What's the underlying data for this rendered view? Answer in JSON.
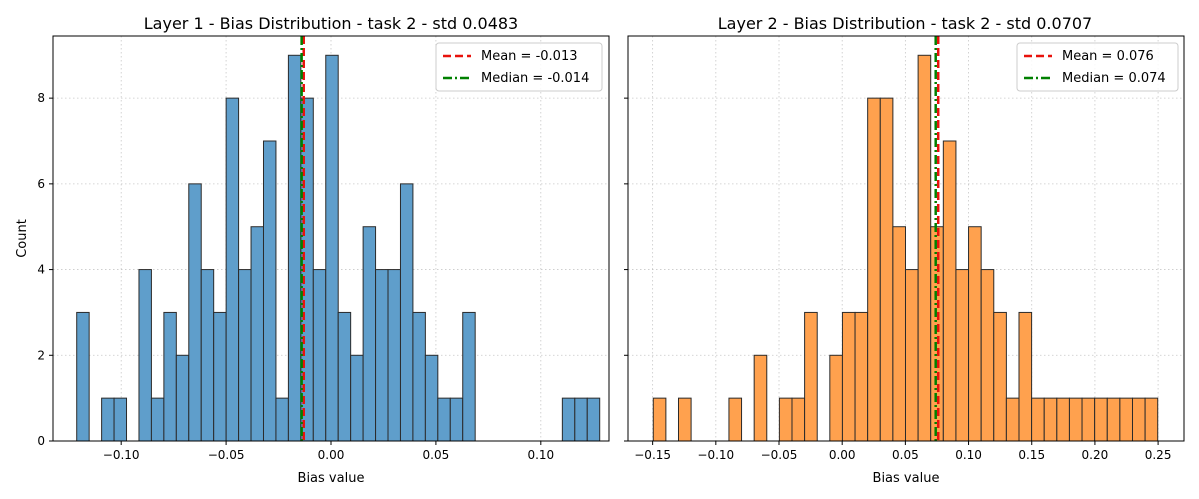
{
  "chart_data": [
    {
      "type": "bar",
      "title": "Layer 1 - Bias Distribution - task 2 - std 0.0483",
      "xlabel": "Bias value",
      "ylabel": "Count",
      "xlim": [
        -0.1325,
        0.1325
      ],
      "ylim": [
        0,
        9.45
      ],
      "xticks": [
        -0.1,
        -0.05,
        0.0,
        0.05,
        0.1
      ],
      "xtick_labels": [
        "−0.10",
        "−0.05",
        "0.00",
        "0.05",
        "0.10"
      ],
      "yticks": [
        0,
        2,
        4,
        6,
        8
      ],
      "grid": true,
      "legend_position": "top-right",
      "bar_color": "#5f9ecb",
      "bins": {
        "start": -0.1212,
        "width": 0.005935,
        "counts": [
          3,
          0,
          1,
          1,
          0,
          4,
          1,
          3,
          2,
          6,
          4,
          3,
          8,
          4,
          5,
          7,
          1,
          9,
          8,
          4,
          9,
          3,
          2,
          5,
          4,
          4,
          6,
          3,
          2,
          1,
          1,
          3,
          0,
          0,
          0,
          0,
          0,
          0,
          0,
          1,
          1,
          1
        ]
      },
      "lines": [
        {
          "name": "Mean = -0.013",
          "x": -0.013,
          "color": "#e8120c",
          "style": "dashed"
        },
        {
          "name": "Median = -0.014",
          "x": -0.014,
          "color": "#008000",
          "style": "dashdot"
        }
      ]
    },
    {
      "type": "bar",
      "title": "Layer 2 - Bias Distribution - task 2 - std 0.0707",
      "xlabel": "Bias value",
      "ylabel": "",
      "xlim": [
        -0.1695,
        0.2705
      ],
      "ylim": [
        0,
        9.45
      ],
      "xticks": [
        -0.15,
        -0.1,
        -0.05,
        0.0,
        0.05,
        0.1,
        0.15,
        0.2,
        0.25
      ],
      "xtick_labels": [
        "−0.15",
        "−0.10",
        "−0.05",
        "0.00",
        "0.05",
        "0.10",
        "0.15",
        "0.20",
        "0.25"
      ],
      "yticks": [
        0,
        2,
        4,
        6,
        8
      ],
      "grid": true,
      "legend_position": "top-right",
      "bar_color": "#ffa14e",
      "bins": {
        "start": -0.1495,
        "width": 0.00998,
        "counts": [
          1,
          0,
          1,
          0,
          0,
          0,
          1,
          0,
          2,
          0,
          1,
          1,
          3,
          0,
          2,
          3,
          3,
          8,
          8,
          5,
          4,
          9,
          5,
          7,
          4,
          5,
          4,
          3,
          1,
          3,
          1,
          1,
          1,
          1,
          1,
          1,
          1,
          1,
          1,
          1
        ]
      },
      "lines": [
        {
          "name": "Mean = 0.076",
          "x": 0.076,
          "color": "#e8120c",
          "style": "dashed"
        },
        {
          "name": "Median = 0.074",
          "x": 0.074,
          "color": "#008000",
          "style": "dashdot"
        }
      ]
    }
  ]
}
